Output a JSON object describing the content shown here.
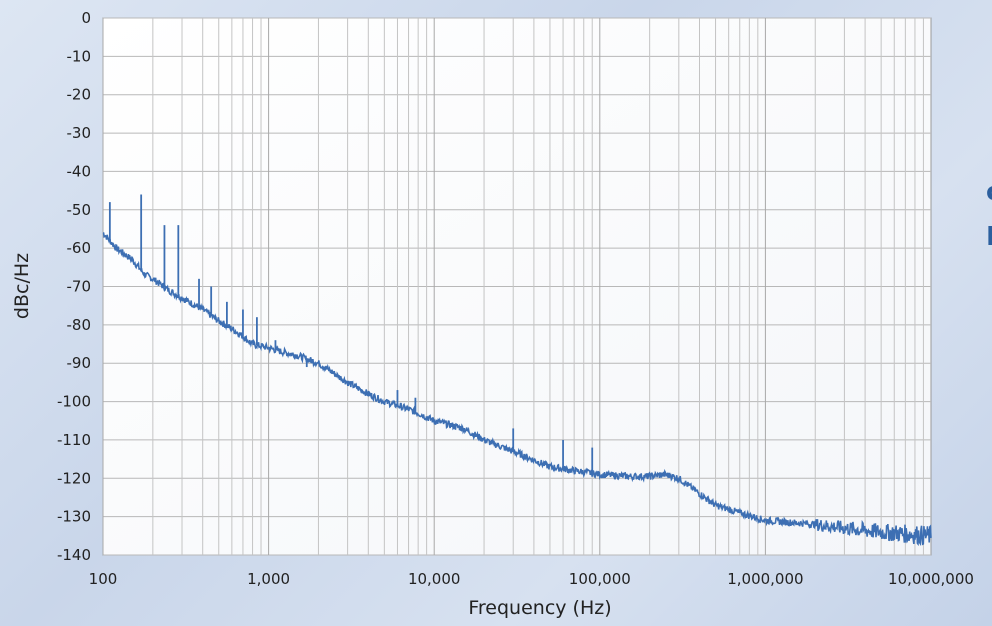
{
  "chart_data": {
    "type": "line",
    "title": "",
    "xlabel": "Frequency (Hz)",
    "ylabel": "dBc/Hz",
    "xscale": "log",
    "xlim": [
      100,
      10000000
    ],
    "ylim": [
      -140,
      0
    ],
    "grid": true,
    "legend": "none",
    "x_tick_labels": [
      "100",
      "1,000",
      "10,000",
      "100,000",
      "1,000,000",
      "10,000,000"
    ],
    "x_ticks": [
      100,
      1000,
      10000,
      100000,
      1000000,
      10000000
    ],
    "y_tick_labels": [
      "0",
      "-10",
      "-20",
      "-30",
      "-40",
      "-50",
      "-60",
      "-70",
      "-80",
      "-90",
      "-100",
      "-110",
      "-120",
      "-130",
      "-140"
    ],
    "y_ticks": [
      0,
      -10,
      -20,
      -30,
      -40,
      -50,
      -60,
      -70,
      -80,
      -90,
      -100,
      -110,
      -120,
      -130,
      -140
    ],
    "series": [
      {
        "color": "#3d6fb3",
        "x": [
          100,
          110,
          120,
          150,
          180,
          200,
          250,
          300,
          400,
          500,
          600,
          700,
          800,
          1000,
          1200,
          1500,
          2000,
          3000,
          4000,
          5000,
          6000,
          8000,
          10000,
          15000,
          20000,
          30000,
          50000,
          70000,
          100000,
          150000,
          200000,
          250000,
          300000,
          400000,
          500000,
          700000,
          1000000,
          2000000,
          3000000,
          5000000,
          10000000
        ],
        "y": [
          -56,
          -58,
          -60,
          -63,
          -67,
          -68,
          -71,
          -73,
          -76,
          -79,
          -81,
          -83,
          -85,
          -86,
          -87,
          -88,
          -90,
          -95,
          -98,
          -100,
          -101,
          -103,
          -105,
          -107,
          -110,
          -113,
          -117,
          -118,
          -119,
          -119.5,
          -119.5,
          -119,
          -120,
          -124,
          -127,
          -129,
          -131,
          -132,
          -133,
          -134,
          -135
        ]
      }
    ],
    "spurs": [
      {
        "x": 110,
        "y": -48
      },
      {
        "x": 170,
        "y": -46
      },
      {
        "x": 235,
        "y": -54
      },
      {
        "x": 285,
        "y": -54
      },
      {
        "x": 380,
        "y": -68
      },
      {
        "x": 450,
        "y": -70
      },
      {
        "x": 560,
        "y": -74
      },
      {
        "x": 700,
        "y": -76
      },
      {
        "x": 850,
        "y": -78
      },
      {
        "x": 1100,
        "y": -84
      },
      {
        "x": 1700,
        "y": -91
      },
      {
        "x": 6000,
        "y": -97
      },
      {
        "x": 7700,
        "y": -99
      },
      {
        "x": 30000,
        "y": -107
      },
      {
        "x": 60000,
        "y": -110
      },
      {
        "x": 90000,
        "y": -112
      }
    ]
  }
}
